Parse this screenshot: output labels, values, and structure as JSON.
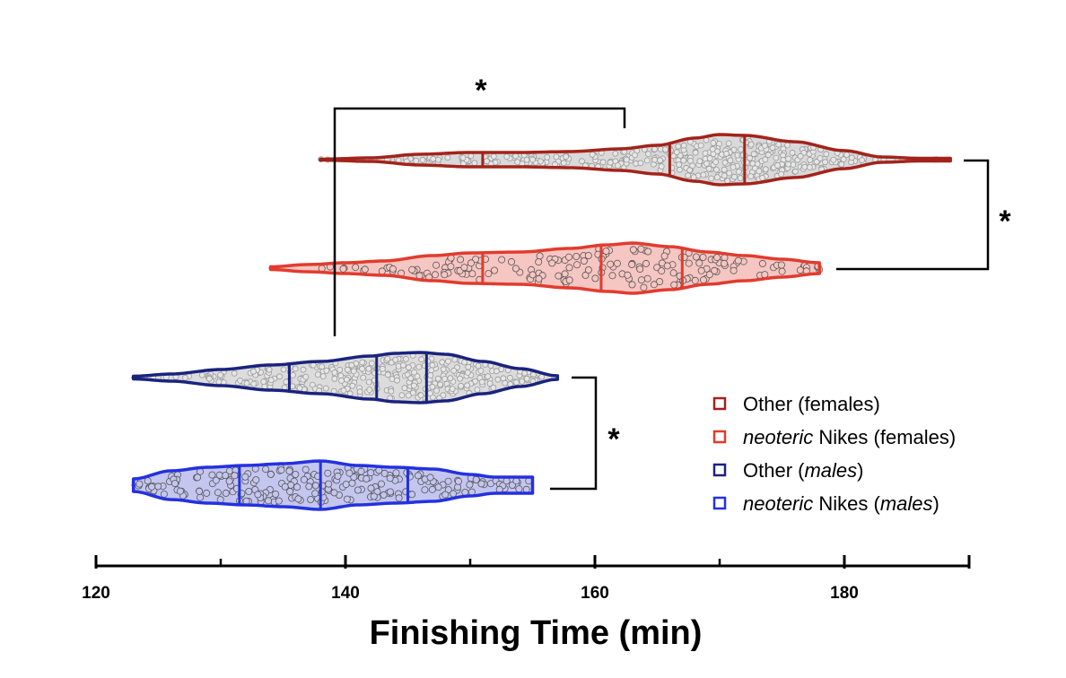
{
  "chart_data": {
    "type": "violin",
    "xlabel": "Finishing Time (min)",
    "xlim": [
      120,
      190
    ],
    "x_ticks_major": [
      120,
      140,
      160,
      180
    ],
    "x_ticks_minor": [
      130,
      150,
      170
    ],
    "series": [
      {
        "key": "other_females",
        "legend_parts": [
          {
            "text": "Other (females)",
            "italic": false
          }
        ],
        "color": "#a3231b",
        "fill": "#d9d9d9",
        "point_fill": "#e6e6e6",
        "point_stroke": "#9a9a9a",
        "n_points": 400,
        "min": 138,
        "max": 188.5,
        "quartile_lines": [
          151,
          166,
          172
        ],
        "density": [
          [
            138,
            0.5
          ],
          [
            142,
            2
          ],
          [
            146,
            6
          ],
          [
            150,
            8
          ],
          [
            154,
            8
          ],
          [
            158,
            9
          ],
          [
            162,
            12
          ],
          [
            165,
            16
          ],
          [
            168,
            24
          ],
          [
            170,
            28
          ],
          [
            172,
            27
          ],
          [
            176,
            20
          ],
          [
            180,
            10
          ],
          [
            183,
            3
          ],
          [
            186,
            1.5
          ],
          [
            188.5,
            1.5
          ]
        ]
      },
      {
        "key": "neoteric_females",
        "legend_parts": [
          {
            "text": "neoteric",
            "italic": true
          },
          {
            "text": " Nikes (females)",
            "italic": false
          }
        ],
        "color": "#e23b2e",
        "fill": "#f6c6c2",
        "point_fill": "#f6c6c2",
        "point_stroke": "#555555",
        "n_points": 170,
        "min": 134,
        "max": 178,
        "quartile_lines": [
          151,
          160.5,
          167
        ],
        "density": [
          [
            134,
            1.5
          ],
          [
            137,
            4
          ],
          [
            140,
            6
          ],
          [
            143,
            8
          ],
          [
            147,
            14
          ],
          [
            150,
            17
          ],
          [
            154,
            18
          ],
          [
            158,
            22
          ],
          [
            161,
            26
          ],
          [
            163,
            28
          ],
          [
            166,
            24
          ],
          [
            169,
            18
          ],
          [
            172,
            14
          ],
          [
            175,
            10
          ],
          [
            178,
            6
          ]
        ]
      },
      {
        "key": "other_males",
        "legend_parts": [
          {
            "text": "Other (",
            "italic": false
          },
          {
            "text": "males",
            "italic": true
          },
          {
            "text": ")",
            "italic": false
          }
        ],
        "color": "#1a237e",
        "fill": "#dcdcdc",
        "point_fill": "#e6e6e6",
        "point_stroke": "#9a9a9a",
        "n_points": 330,
        "min": 123,
        "max": 157,
        "quartile_lines": [
          135.5,
          142.5,
          146.5
        ],
        "density": [
          [
            123,
            1.5
          ],
          [
            126,
            4
          ],
          [
            130,
            9
          ],
          [
            134,
            14
          ],
          [
            138,
            18
          ],
          [
            142,
            24
          ],
          [
            144,
            27
          ],
          [
            146,
            28
          ],
          [
            148,
            26
          ],
          [
            151,
            18
          ],
          [
            154,
            10
          ],
          [
            157,
            2
          ]
        ]
      },
      {
        "key": "neoteric_males",
        "legend_parts": [
          {
            "text": "neoteric",
            "italic": true
          },
          {
            "text": " Nikes (",
            "italic": false
          },
          {
            "text": "males",
            "italic": true
          },
          {
            "text": ")",
            "italic": false
          }
        ],
        "color": "#2431e0",
        "fill": "#c4c6ef",
        "point_fill": "#c4c6ef",
        "point_stroke": "#555555",
        "n_points": 230,
        "min": 123,
        "max": 155,
        "quartile_lines": [
          131.5,
          138,
          145
        ],
        "density": [
          [
            123,
            7
          ],
          [
            126,
            16
          ],
          [
            129,
            20
          ],
          [
            132,
            22
          ],
          [
            135,
            24
          ],
          [
            138,
            27
          ],
          [
            141,
            22
          ],
          [
            144,
            20
          ],
          [
            147,
            18
          ],
          [
            150,
            12
          ],
          [
            152,
            9
          ],
          [
            155,
            9
          ]
        ]
      }
    ],
    "significance": [
      {
        "label": "*",
        "between": [
          "other_females",
          "neoteric_females"
        ]
      },
      {
        "label": "*",
        "between": [
          "other_females",
          "neoteric_females"
        ],
        "side": "right"
      },
      {
        "label": "*",
        "between": [
          "other_males",
          "neoteric_males"
        ],
        "side": "right"
      }
    ],
    "legend": {
      "placement": "right"
    }
  }
}
